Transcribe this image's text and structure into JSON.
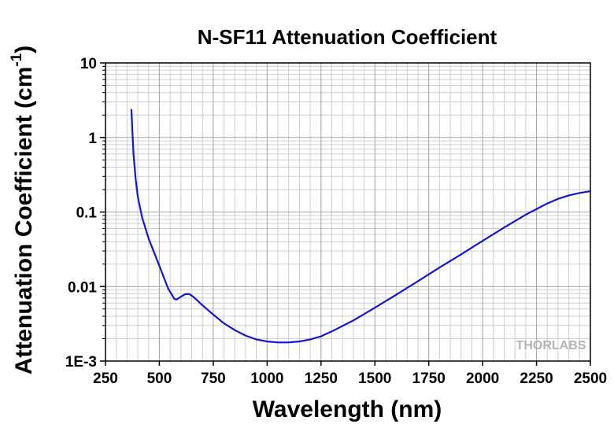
{
  "chart_data": {
    "type": "line",
    "title": "N-SF11 Attenuation Coefficient",
    "xlabel": "Wavelength (nm)",
    "ylabel": "Attenuation Coefficient (cm",
    "ylabel_superscript": "-1",
    "ylabel_suffix": ")",
    "xlim": [
      250,
      2500
    ],
    "ylim": [
      0.001,
      10
    ],
    "yscale": "log",
    "grid": true,
    "x_ticks": [
      250,
      500,
      750,
      1000,
      1250,
      1500,
      1750,
      2000,
      2250,
      2500
    ],
    "x_tick_labels": [
      "250",
      "500",
      "750",
      "1000",
      "1250",
      "1500",
      "1750",
      "2000",
      "2250",
      "2500"
    ],
    "y_ticks": [
      0.001,
      0.01,
      0.1,
      1,
      10
    ],
    "y_tick_labels": [
      "1E-3",
      "0.01",
      "0.1",
      "1",
      "10"
    ],
    "watermark": "THORLABS",
    "line_color": "#1414d2",
    "series": [
      {
        "x": [
          370,
          375,
          380,
          390,
          400,
          420,
          450,
          500,
          540,
          570,
          580,
          600,
          620,
          640,
          660,
          700,
          750,
          800,
          850,
          900,
          950,
          1000,
          1050,
          1100,
          1150,
          1200,
          1250,
          1300,
          1400,
          1500,
          1600,
          1700,
          1800,
          1900,
          2000,
          2100,
          2200,
          2300,
          2350,
          2400,
          2450,
          2500
        ],
        "y": [
          2.4,
          1.2,
          0.6,
          0.28,
          0.16,
          0.085,
          0.044,
          0.019,
          0.0095,
          0.0068,
          0.0067,
          0.0073,
          0.0079,
          0.0079,
          0.0072,
          0.0056,
          0.0042,
          0.0032,
          0.0026,
          0.0022,
          0.00195,
          0.00183,
          0.00178,
          0.00178,
          0.00183,
          0.00195,
          0.00215,
          0.0025,
          0.0035,
          0.0052,
          0.0078,
          0.0118,
          0.018,
          0.027,
          0.041,
          0.062,
          0.092,
          0.13,
          0.15,
          0.167,
          0.18,
          0.19
        ]
      }
    ]
  }
}
